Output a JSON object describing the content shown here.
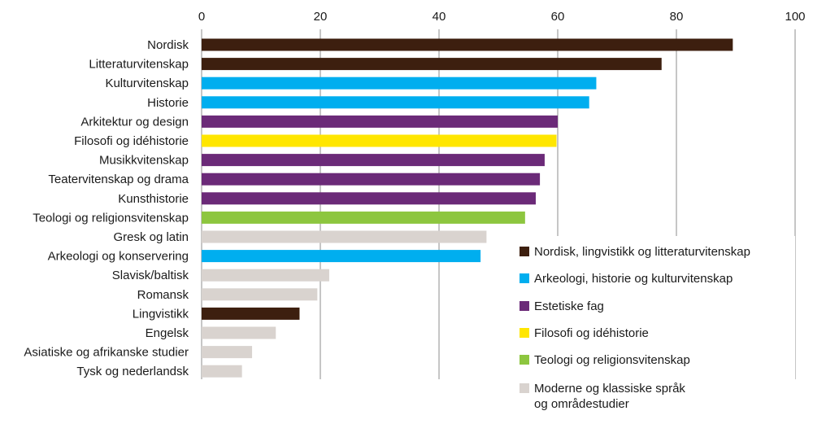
{
  "chart_data": {
    "type": "bar",
    "orientation": "horizontal",
    "categories": [
      "Nordisk",
      "Litteraturvitenskap",
      "Kulturvitenskap",
      "Historie",
      "Arkitektur og design",
      "Filosofi og idéhistorie",
      "Musikkvitenskap",
      "Teatervitenskap og drama",
      "Kunsthistorie",
      "Teologi og religionsvitenskap",
      "Gresk og latin",
      "Arkeologi og konservering",
      "Slavisk/baltisk",
      "Romansk",
      "Lingvistikk",
      "Engelsk",
      "Asiatiske og afrikanske studier",
      "Tysk og nederlandsk"
    ],
    "values": [
      89.5,
      77.5,
      66.5,
      65.3,
      60.0,
      59.8,
      57.8,
      57.0,
      56.3,
      54.5,
      48.0,
      47.0,
      21.5,
      19.5,
      16.5,
      12.5,
      8.5,
      6.8
    ],
    "groups": [
      0,
      0,
      1,
      1,
      2,
      3,
      2,
      2,
      2,
      4,
      5,
      1,
      5,
      5,
      0,
      5,
      5,
      5
    ],
    "xlim": [
      0,
      100
    ],
    "xticks": [
      0,
      20,
      40,
      60,
      80,
      100
    ],
    "grid": true,
    "axis_position": "top",
    "legend_position": "bottom-right",
    "legend": [
      {
        "name": "Nordisk, lingvistikk og litteraturvitenskap",
        "color": "#3d1f0f"
      },
      {
        "name": "Arkeologi, historie og kulturvitenskap",
        "color": "#00aeef"
      },
      {
        "name": "Estetiske fag",
        "color": "#6b2a78"
      },
      {
        "name": "Filosofi og idéhistorie",
        "color": "#ffe600"
      },
      {
        "name": "Teologi og religionsvitenskap",
        "color": "#8dc63f"
      },
      {
        "name": "Moderne og klassiske språk og områdestudier",
        "color": "#d9d3cf"
      }
    ]
  }
}
